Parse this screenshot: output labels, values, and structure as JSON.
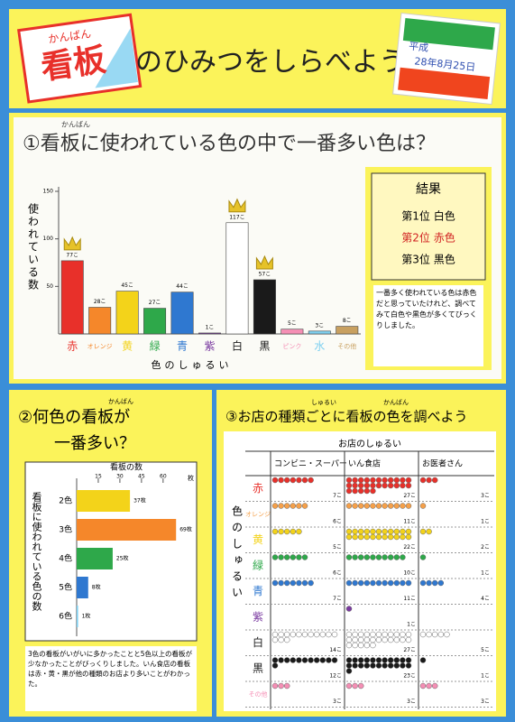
{
  "header": {
    "title_ruby": "かんばん",
    "title_kanji": "看板",
    "title_rest": "のひみつをしらべよう",
    "date_lines": [
      "平成",
      "28年8月25日"
    ]
  },
  "chart_data": [
    {
      "type": "bar",
      "title": "①看板に使われている色の中で一番多い色は？",
      "title_ruby": "かんばん",
      "y_label": "使われている数",
      "x_label": "色のしゅるい",
      "categories": [
        "赤",
        "オレンジ",
        "黄",
        "緑",
        "青",
        "紫",
        "白",
        "黒",
        "ピンク",
        "水",
        "その他"
      ],
      "values": [
        77,
        28,
        45,
        27,
        44,
        1,
        117,
        57,
        5,
        3,
        8
      ],
      "value_labels": [
        "77こ",
        "28こ",
        "45こ",
        "27こ",
        "44こ",
        "1こ",
        "117こ",
        "57こ",
        "5こ",
        "3こ",
        "8こ"
      ],
      "colors": [
        "#e8302a",
        "#f5872a",
        "#f3d31a",
        "#2ea84a",
        "#2f78d0",
        "#7a3aa0",
        "#ffffff",
        "#1a1a1a",
        "#f58fb5",
        "#7fd0f0",
        "#c8a060"
      ],
      "ylim": [
        0,
        150
      ],
      "yticks": [
        50,
        100,
        150
      ]
    },
    {
      "type": "hbar",
      "title": [
        "②何色の看板が",
        "一番多い？"
      ],
      "title_ruby": "かんばん",
      "x_label": "看板の数",
      "x_unit": "枚",
      "y_label": "看板に使われている色の数",
      "categories": [
        "2色",
        "3色",
        "4色",
        "5色",
        "6色"
      ],
      "values": [
        37,
        69,
        25,
        8,
        1
      ],
      "value_labels": [
        "37枚",
        "69枚",
        "25枚",
        "8枚",
        "1枚"
      ],
      "colors": [
        "#f3d31a",
        "#f5872a",
        "#2ea84a",
        "#2f78d0",
        "#7fd0f0"
      ],
      "xlim": [
        0,
        72
      ],
      "xticks": [
        15,
        30,
        45,
        60
      ]
    }
  ],
  "results": {
    "title": "結果",
    "rows": [
      "第1位 白色",
      "第2位 赤色",
      "第3位 黒色"
    ],
    "note": "一番多く使われている色は赤色だと思っていたけれど、調べてみて白色や黒色が多くてびっくりしました。"
  },
  "note2": "3色の看板がいがいに多かったことと5色以上の看板が少なかったことがびっくりしました。いん食店の看板は赤・黄・黒が他の種類のお店より多いことがわかった。",
  "table": {
    "title": "③お店の種類ごとに看板の色を調べよう",
    "title_ruby": [
      "しゅるい",
      "かんばん"
    ],
    "header": "お店のしゅるい",
    "row_axis": "色のしゅるい",
    "columns": [
      "コンビニ・スーパー",
      "いん食店",
      "お医者さん"
    ],
    "rows": [
      {
        "name": "赤",
        "color": "#e8302a",
        "values": [
          7,
          27,
          3
        ],
        "value_labels": [
          "7こ",
          "27こ",
          "3こ"
        ]
      },
      {
        "name": "オレンジ",
        "color": "#f5a04a",
        "values": [
          6,
          11,
          1
        ],
        "value_labels": [
          "6こ",
          "11こ",
          "1こ"
        ]
      },
      {
        "name": "黄",
        "color": "#f3d31a",
        "values": [
          5,
          22,
          2
        ],
        "value_labels": [
          "5こ",
          "22こ",
          "2こ"
        ]
      },
      {
        "name": "緑",
        "color": "#2ea84a",
        "values": [
          6,
          10,
          1
        ],
        "value_labels": [
          "6こ",
          "10こ",
          "1こ"
        ]
      },
      {
        "name": "青",
        "color": "#2f78d0",
        "values": [
          7,
          11,
          4
        ],
        "value_labels": [
          "7こ",
          "11こ",
          "4こ"
        ]
      },
      {
        "name": "紫",
        "color": "#7a3aa0",
        "values": [
          null,
          1,
          null
        ],
        "value_labels": [
          null,
          "1こ",
          null
        ]
      },
      {
        "name": "白",
        "color": "#ffffff",
        "values": [
          14,
          27,
          5
        ],
        "value_labels": [
          "14こ",
          "27こ",
          "5こ"
        ]
      },
      {
        "name": "黒",
        "color": "#1a1a1a",
        "values": [
          12,
          23,
          1
        ],
        "value_labels": [
          "12こ",
          "23こ",
          "1こ"
        ]
      },
      {
        "name": "その他",
        "color": "#f58fb5",
        "values": [
          3,
          3,
          3
        ],
        "value_labels": [
          "3こ",
          "3こ",
          "3こ"
        ]
      }
    ]
  }
}
